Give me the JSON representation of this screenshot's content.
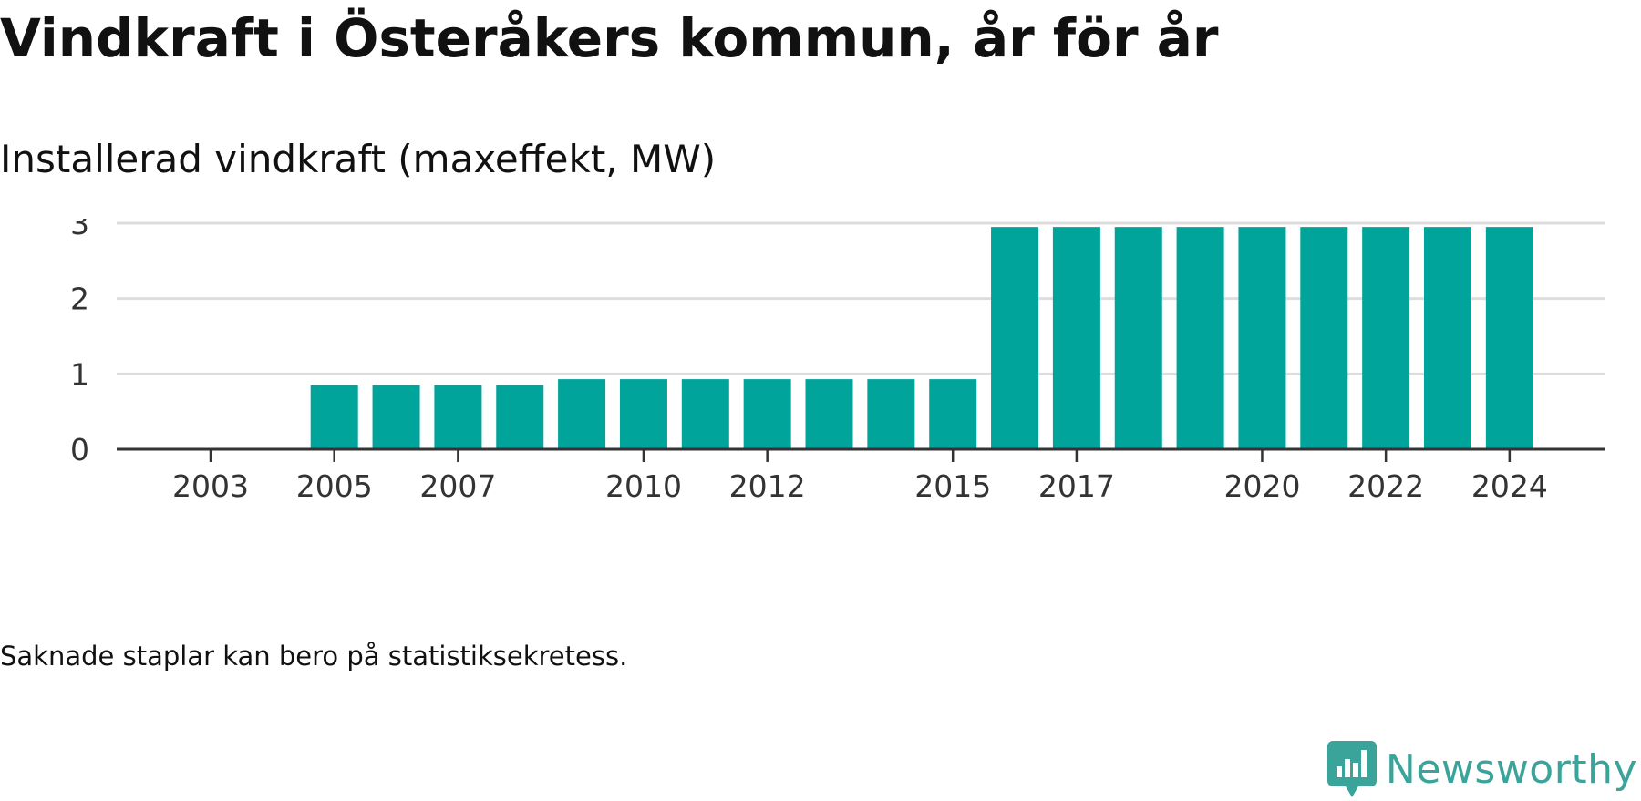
{
  "title": "Vindkraft i Österåkers kommun, år för år",
  "subtitle": "Installerad vindkraft (maxeffekt, MW)",
  "note": "Saknade staplar kan bero på statistiksekretess.",
  "brand": {
    "name": "Newsworthy",
    "logo_icon": "newsworthy-logo-icon",
    "color": "#3aa39a"
  },
  "colors": {
    "bar": "#00a49a",
    "grid": "#dddddd",
    "axis": "#333333",
    "text": "#333333"
  },
  "chart_data": {
    "type": "bar",
    "title": "Installerad vindkraft (maxeffekt, MW)",
    "xlabel": "",
    "ylabel": "",
    "ylim": [
      0,
      3
    ],
    "yticks": [
      0,
      1,
      2,
      3
    ],
    "grid": true,
    "x_tick_labels": [
      "2003",
      "2005",
      "2007",
      "2010",
      "2012",
      "2015",
      "2017",
      "2020",
      "2022",
      "2024"
    ],
    "categories": [
      "2003",
      "2004",
      "2005",
      "2006",
      "2007",
      "2008",
      "2009",
      "2010",
      "2011",
      "2012",
      "2013",
      "2014",
      "2015",
      "2016",
      "2017",
      "2018",
      "2019",
      "2020",
      "2021",
      "2022",
      "2023",
      "2024"
    ],
    "values": [
      null,
      null,
      0.85,
      0.85,
      0.85,
      0.85,
      0.93,
      0.93,
      0.93,
      0.93,
      0.93,
      0.93,
      0.93,
      2.95,
      2.95,
      2.95,
      2.95,
      2.95,
      2.95,
      2.95,
      2.95,
      2.95
    ]
  }
}
